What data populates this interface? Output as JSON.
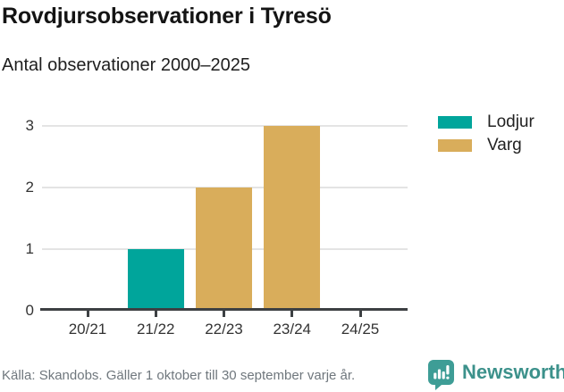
{
  "header": {
    "title": "Rovdjursobservationer i Tyresö",
    "subtitle": "Antal observationer 2000–2025"
  },
  "chart_data": {
    "type": "bar",
    "categories": [
      "20/21",
      "21/22",
      "22/23",
      "23/24",
      "24/25"
    ],
    "series": [
      {
        "name": "Lodjur",
        "color": "#00a59b",
        "values": [
          0,
          1,
          0,
          0,
          0
        ]
      },
      {
        "name": "Varg",
        "color": "#d9ad5b",
        "values": [
          0,
          0,
          2,
          3,
          0
        ]
      }
    ],
    "title": "Rovdjursobservationer i Tyresö",
    "subtitle": "Antal observationer 2000–2025",
    "xlabel": "",
    "ylabel": "",
    "ylim": [
      0,
      3
    ],
    "yticks": [
      0,
      1,
      2,
      3
    ],
    "grid": true,
    "legend_position": "right"
  },
  "footer": {
    "source": "Källa: Skandobs. Gäller 1 oktober till 30 september varje år.",
    "brand": "Newsworthy"
  },
  "colors": {
    "lodjur": "#00a59b",
    "varg": "#d9ad5b",
    "brand_teal": "#3e9d96",
    "grid": "#e4e4e4",
    "axis": "#3d4043"
  }
}
